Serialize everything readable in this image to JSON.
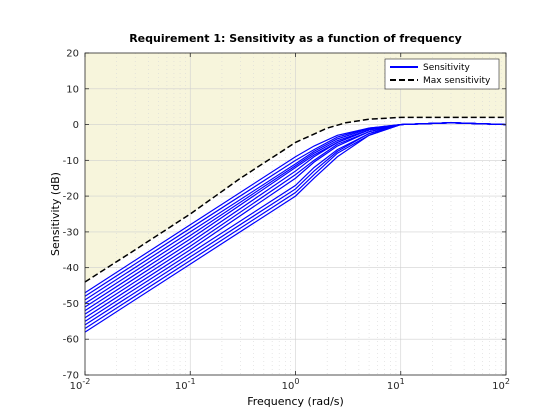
{
  "chart_data": {
    "type": "line",
    "title": "Requirement 1: Sensitivity as a function of frequency",
    "xlabel": "Frequency (rad/s)",
    "ylabel": "Sensitivity (dB)",
    "xscale": "log",
    "xlim": [
      0.01,
      100
    ],
    "ylim": [
      -70,
      20
    ],
    "x_ticks": [
      "10^-2",
      "10^-1",
      "10^0",
      "10^1",
      "10^2"
    ],
    "y_ticks": [
      20,
      10,
      0,
      -10,
      -20,
      -30,
      -40,
      -50,
      -60,
      -70
    ],
    "grid": true,
    "legend_position": "top-right",
    "shaded_region": {
      "description": "area above max sensitivity bound",
      "color": "#f7f5dc"
    },
    "series": [
      {
        "name": "Sensitivity",
        "color": "#0000ff",
        "style": "solid",
        "note": "family of ~16 curves (multiple model samples)",
        "curves": [
          {
            "x": [
              0.01,
              0.1,
              1,
              1.5,
              2.5,
              5,
              10,
              30,
              100
            ],
            "y": [
              -47,
              -28,
              -9,
              -6,
              -3,
              -1,
              0,
              0.5,
              0
            ]
          },
          {
            "x": [
              0.01,
              0.1,
              1,
              1.5,
              2.5,
              5,
              10,
              30,
              100
            ],
            "y": [
              -48,
              -29,
              -10,
              -7,
              -3.5,
              -1,
              0,
              0.5,
              0
            ]
          },
          {
            "x": [
              0.01,
              0.1,
              1,
              1.5,
              2.5,
              5,
              10,
              30,
              100
            ],
            "y": [
              -49,
              -30,
              -11,
              -7.5,
              -4,
              -1.2,
              0,
              0.5,
              0
            ]
          },
          {
            "x": [
              0.01,
              0.1,
              1,
              1.5,
              2.5,
              5,
              10,
              30,
              100
            ],
            "y": [
              -50,
              -31,
              -11.5,
              -8,
              -4.5,
              -1.5,
              0,
              0.5,
              0
            ]
          },
          {
            "x": [
              0.01,
              0.1,
              1,
              1.5,
              2.5,
              5,
              10,
              30,
              100
            ],
            "y": [
              -51,
              -32,
              -12,
              -8.5,
              -5,
              -1.5,
              0,
              0.5,
              0
            ]
          },
          {
            "x": [
              0.01,
              0.1,
              1,
              1.5,
              2.5,
              5,
              10,
              30,
              100
            ],
            "y": [
              -52,
              -33,
              -13,
              -9,
              -5,
              -1.5,
              0,
              0.5,
              0
            ]
          },
          {
            "x": [
              0.01,
              0.1,
              1,
              1.5,
              2.5,
              5,
              10,
              30,
              100
            ],
            "y": [
              -53,
              -34,
              -14,
              -10,
              -5.5,
              -2,
              0,
              0.5,
              0
            ]
          },
          {
            "x": [
              0.01,
              0.1,
              1,
              1.5,
              2.5,
              5,
              10,
              30,
              100
            ],
            "y": [
              -54,
              -35,
              -15,
              -10.5,
              -6,
              -2,
              0,
              0.5,
              0
            ]
          },
          {
            "x": [
              0.01,
              0.1,
              1,
              1.5,
              2.5,
              5,
              10,
              30,
              100
            ],
            "y": [
              -55,
              -36,
              -17,
              -12,
              -7,
              -2.5,
              0,
              0.5,
              0
            ]
          },
          {
            "x": [
              0.01,
              0.1,
              1,
              1.5,
              2.5,
              5,
              10,
              30,
              100
            ],
            "y": [
              -56,
              -37,
              -18,
              -13,
              -7.5,
              -2.5,
              0,
              0.5,
              0
            ]
          },
          {
            "x": [
              0.01,
              0.1,
              1,
              1.5,
              2.5,
              5,
              10,
              30,
              100
            ],
            "y": [
              -57,
              -38,
              -19,
              -14,
              -8,
              -3,
              0,
              0.5,
              0
            ]
          },
          {
            "x": [
              0.01,
              0.1,
              1,
              1.5,
              2.5,
              5,
              10,
              30,
              100
            ],
            "y": [
              -58,
              -39,
              -20,
              -15,
              -9,
              -3,
              0,
              0.5,
              0
            ]
          }
        ]
      },
      {
        "name": "Max sensitivity",
        "color": "#000000",
        "style": "dashed",
        "x": [
          0.01,
          0.03,
          0.1,
          0.3,
          1,
          2,
          3,
          5,
          10,
          30,
          100
        ],
        "y": [
          -44,
          -35,
          -25,
          -15,
          -5,
          -1,
          0.5,
          1.5,
          2,
          2,
          2
        ]
      }
    ]
  }
}
